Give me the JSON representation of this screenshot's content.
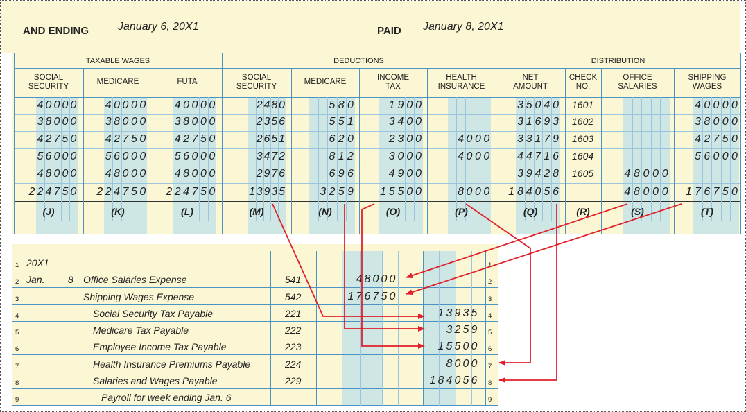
{
  "header": {
    "ending_label": "AND ENDING",
    "ending_value": "January 6, 20X1",
    "paid_label": "PAID",
    "paid_value": "January 8, 20X1"
  },
  "groups": {
    "taxable": "TAXABLE WAGES",
    "deductions": "DEDUCTIONS",
    "distribution": "DISTRIBUTION"
  },
  "columns": [
    {
      "l1": "SOCIAL",
      "l2": "SECURITY"
    },
    {
      "l1": "MEDICARE",
      "l2": ""
    },
    {
      "l1": "FUTA",
      "l2": ""
    },
    {
      "l1": "SOCIAL",
      "l2": "SECURITY"
    },
    {
      "l1": "MEDICARE",
      "l2": ""
    },
    {
      "l1": "INCOME",
      "l2": "TAX"
    },
    {
      "l1": "HEALTH",
      "l2": "INSURANCE"
    },
    {
      "l1": "NET",
      "l2": "AMOUNT"
    },
    {
      "l1": "CHECK",
      "l2": "NO."
    },
    {
      "l1": "OFFICE",
      "l2": "SALARIES"
    },
    {
      "l1": "SHIPPING",
      "l2": "WAGES"
    }
  ],
  "rows": [
    [
      "40000",
      "40000",
      "40000",
      "2480",
      "580",
      "1900",
      "",
      "35040",
      "1601",
      "",
      "40000"
    ],
    [
      "38000",
      "38000",
      "38000",
      "2356",
      "551",
      "3400",
      "",
      "31693",
      "1602",
      "",
      "38000"
    ],
    [
      "42750",
      "42750",
      "42750",
      "2651",
      "620",
      "2300",
      "4000",
      "33179",
      "1603",
      "",
      "42750"
    ],
    [
      "56000",
      "56000",
      "56000",
      "3472",
      "812",
      "3000",
      "4000",
      "44716",
      "1604",
      "",
      "56000"
    ],
    [
      "48000",
      "48000",
      "48000",
      "2976",
      "696",
      "4900",
      "",
      "39428",
      "1605",
      "48000",
      ""
    ]
  ],
  "totals": [
    "224750",
    "224750",
    "224750",
    "13935",
    "3259",
    "15500",
    "8000",
    "184056",
    "",
    "48000",
    "176750"
  ],
  "refs": [
    "(J)",
    "(K)",
    "(L)",
    "(M)",
    "(N)",
    "(O)",
    "(P)",
    "(Q)",
    "(R)",
    "(S)",
    "(T)"
  ],
  "journal": {
    "year": "20X1",
    "month": "Jan.",
    "day": "8",
    "lines": [
      {
        "n": "1",
        "desc": "",
        "acct": "",
        "debit": "",
        "credit": ""
      },
      {
        "n": "2",
        "desc": "Office Salaries Expense",
        "acct": "541",
        "debit": "48000",
        "credit": ""
      },
      {
        "n": "3",
        "desc": "Shipping Wages Expense",
        "acct": "542",
        "debit": "176750",
        "credit": ""
      },
      {
        "n": "4",
        "desc": "Social Security Tax Payable",
        "acct": "221",
        "debit": "",
        "credit": "13935"
      },
      {
        "n": "5",
        "desc": "Medicare Tax Payable",
        "acct": "222",
        "debit": "",
        "credit": "3259"
      },
      {
        "n": "6",
        "desc": "Employee Income Tax Payable",
        "acct": "223",
        "debit": "",
        "credit": "15500"
      },
      {
        "n": "7",
        "desc": "Health Insurance Premiums Payable",
        "acct": "224",
        "debit": "",
        "credit": "8000"
      },
      {
        "n": "8",
        "desc": "Salaries and Wages Payable",
        "acct": "229",
        "debit": "",
        "credit": "184056"
      },
      {
        "n": "9",
        "desc": "Payroll for week ending Jan. 6",
        "acct": "",
        "debit": "",
        "credit": ""
      }
    ]
  },
  "colors": {
    "paper": "#fbf6d3",
    "shade": "#cfe7e4",
    "rule": "#4a93c3",
    "arrow": "#e0202b"
  }
}
